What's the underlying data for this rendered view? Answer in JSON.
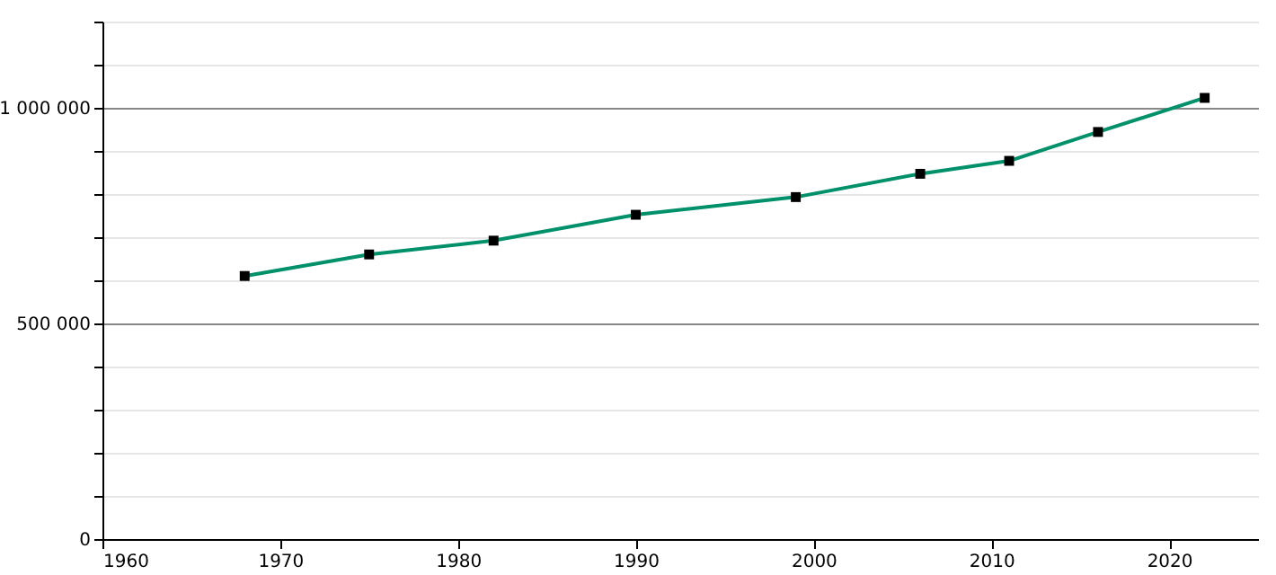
{
  "chart_data": {
    "type": "line",
    "x": [
      1968,
      1975,
      1982,
      1990,
      1999,
      2006,
      2011,
      2016,
      2022
    ],
    "series": [
      {
        "color": "#00906a",
        "values": [
          610000,
          660000,
          692000,
          752000,
          793000,
          847000,
          877000,
          944000,
          1023000
        ]
      }
    ],
    "xlim": [
      1960,
      2025
    ],
    "xticks": [
      1960,
      1970,
      1980,
      1990,
      2000,
      2010,
      2020
    ],
    "ylim": [
      0,
      1200000
    ],
    "yticks": [
      {
        "value": 0,
        "label": "0"
      },
      {
        "value": 100000,
        "label": null
      },
      {
        "value": 200000,
        "label": null
      },
      {
        "value": 300000,
        "label": null
      },
      {
        "value": 400000,
        "label": null
      },
      {
        "value": 500000,
        "label": "500 000"
      },
      {
        "value": 600000,
        "label": null
      },
      {
        "value": 700000,
        "label": null
      },
      {
        "value": 800000,
        "label": null
      },
      {
        "value": 900000,
        "label": null
      },
      {
        "value": 1000000,
        "label": "1 000 000"
      },
      {
        "value": 1100000,
        "label": null
      },
      {
        "value": 1200000,
        "label": null
      }
    ],
    "grid": "y",
    "marker": "square",
    "line_style": "solid"
  }
}
